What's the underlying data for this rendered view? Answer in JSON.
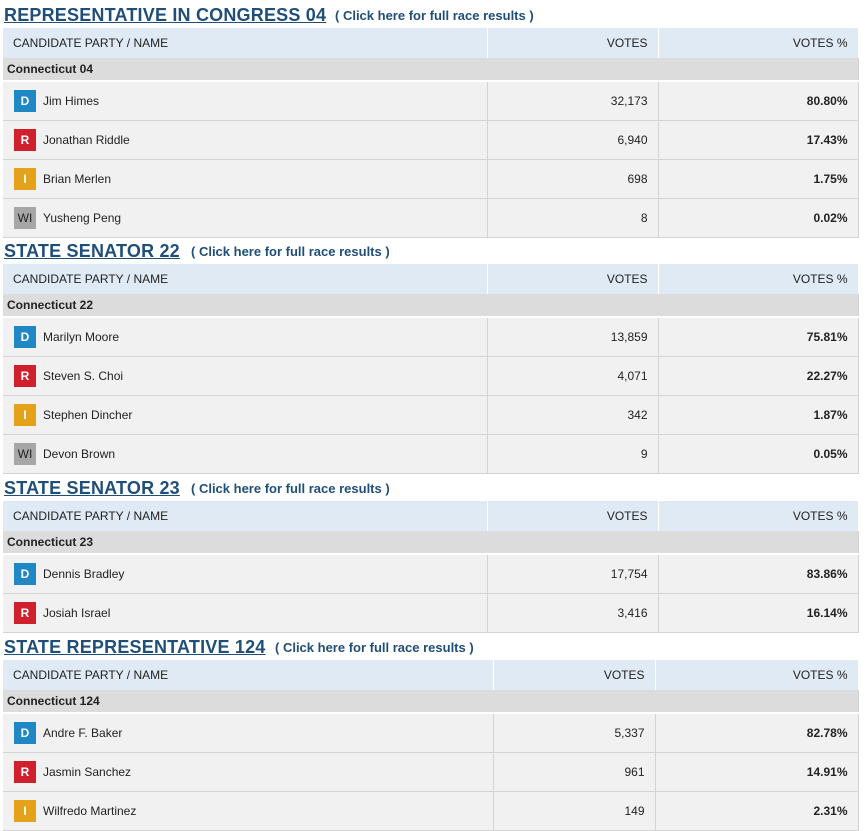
{
  "columns": {
    "candidate": "CANDIDATE PARTY / NAME",
    "votes": "VOTES",
    "pct": "VOTES %"
  },
  "party_colors": {
    "D": "#1f87c4",
    "R": "#d0202e",
    "I": "#e4a21b",
    "WI": "#a6a6a6"
  },
  "races": [
    {
      "title": "REPRESENTATIVE IN CONGRESS 04",
      "link": "( Click here for full race results )",
      "region": "Connecticut 04",
      "candidates": [
        {
          "party": "D",
          "name": "Jim Himes",
          "votes": "32,173",
          "pct": "80.80%"
        },
        {
          "party": "R",
          "name": "Jonathan Riddle",
          "votes": "6,940",
          "pct": "17.43%"
        },
        {
          "party": "I",
          "name": "Brian Merlen",
          "votes": "698",
          "pct": "1.75%"
        },
        {
          "party": "WI",
          "name": "Yusheng Peng",
          "votes": "8",
          "pct": "0.02%"
        }
      ]
    },
    {
      "title": "STATE SENATOR 22",
      "link": "( Click here for full race results )",
      "region": "Connecticut 22",
      "candidates": [
        {
          "party": "D",
          "name": "Marilyn Moore",
          "votes": "13,859",
          "pct": "75.81%"
        },
        {
          "party": "R",
          "name": "Steven S. Choi",
          "votes": "4,071",
          "pct": "22.27%"
        },
        {
          "party": "I",
          "name": "Stephen Dincher",
          "votes": "342",
          "pct": "1.87%"
        },
        {
          "party": "WI",
          "name": "Devon Brown",
          "votes": "9",
          "pct": "0.05%"
        }
      ]
    },
    {
      "title": "STATE SENATOR 23",
      "link": "( Click here for full race results )",
      "region": "Connecticut 23",
      "candidates": [
        {
          "party": "D",
          "name": "Dennis Bradley",
          "votes": "17,754",
          "pct": "83.86%"
        },
        {
          "party": "R",
          "name": "Josiah Israel",
          "votes": "3,416",
          "pct": "16.14%"
        }
      ]
    },
    {
      "title": "STATE REPRESENTATIVE 124",
      "link": "( Click here for full race results )",
      "region": "Connecticut 124",
      "candidates": [
        {
          "party": "D",
          "name": "Andre F. Baker",
          "votes": "5,337",
          "pct": "82.78%"
        },
        {
          "party": "R",
          "name": "Jasmin Sanchez",
          "votes": "961",
          "pct": "14.91%"
        },
        {
          "party": "I",
          "name": "Wilfredo Martinez",
          "votes": "149",
          "pct": "2.31%"
        }
      ]
    }
  ]
}
